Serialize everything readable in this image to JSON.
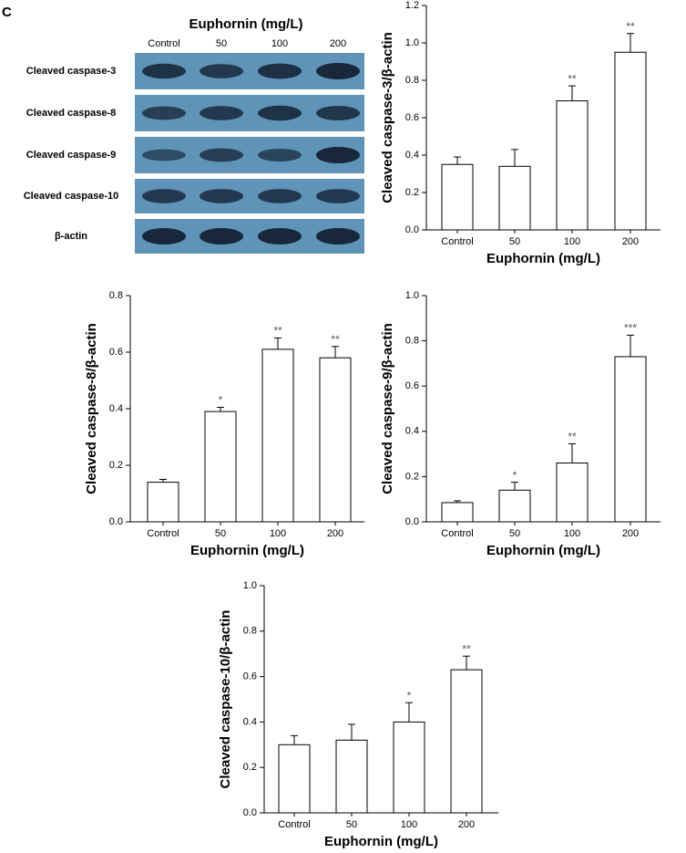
{
  "panel_label": "C",
  "blot": {
    "title": "Euphornin (mg/L)",
    "columns": [
      "Control",
      "50",
      "100",
      "200"
    ],
    "rows": [
      "Cleaved caspase-3",
      "Cleaved caspase-8",
      "Cleaved caspase-9",
      "Cleaved caspase-10",
      "β-actin"
    ]
  },
  "chart_data": [
    {
      "type": "bar",
      "ylabel": "Cleaved caspase-3/β-actin",
      "xlabel": "Euphornin (mg/L)",
      "categories": [
        "Control",
        "50",
        "100",
        "200"
      ],
      "values": [
        0.35,
        0.34,
        0.69,
        0.95
      ],
      "errors": [
        0.04,
        0.09,
        0.08,
        0.1
      ],
      "annotations": [
        null,
        null,
        "**",
        "**"
      ],
      "color": "#ffffff",
      "ylim": [
        0,
        1.2
      ],
      "yticks": [
        {
          "value": 0,
          "label": "0.0"
        },
        0.2,
        0.4,
        0.6,
        0.8,
        {
          "value": 1,
          "label": "1.0"
        },
        1.2
      ]
    },
    {
      "type": "bar",
      "ylabel": "Cleaved caspase-8/β-actin",
      "xlabel": "Euphornin (mg/L)",
      "categories": [
        "Control",
        "50",
        "100",
        "200"
      ],
      "values": [
        0.14,
        0.39,
        0.61,
        0.58
      ],
      "errors": [
        0.01,
        0.015,
        0.04,
        0.04
      ],
      "annotations": [
        null,
        "*",
        "**",
        "**"
      ],
      "color": "#ffffff",
      "ylim": [
        0,
        0.8
      ],
      "yticks": [
        {
          "value": 0,
          "label": "0.0"
        },
        0.2,
        0.4,
        0.6,
        0.8
      ]
    },
    {
      "type": "bar",
      "ylabel": "Cleaved caspase-9/β-actin",
      "xlabel": "Euphornin (mg/L)",
      "categories": [
        "Control",
        "50",
        "100",
        "200"
      ],
      "values": [
        0.085,
        0.14,
        0.26,
        0.73
      ],
      "errors": [
        0.008,
        0.035,
        0.085,
        0.095
      ],
      "annotations": [
        null,
        "*",
        "**",
        "***"
      ],
      "color": "#ffffff",
      "ylim": [
        0,
        1
      ],
      "yticks": [
        {
          "value": 0,
          "label": "0.0"
        },
        0.2,
        0.4,
        0.6,
        0.8,
        {
          "value": 1,
          "label": "1.0"
        }
      ]
    },
    {
      "type": "bar",
      "ylabel": "Cleaved caspase-10/β-actin",
      "xlabel": "Euphornin (mg/L)",
      "categories": [
        "Control",
        "50",
        "100",
        "200"
      ],
      "values": [
        0.3,
        0.32,
        0.4,
        0.63
      ],
      "errors": [
        0.04,
        0.07,
        0.085,
        0.06
      ],
      "annotations": [
        null,
        null,
        "*",
        "**"
      ],
      "color": "#ffffff",
      "ylim": [
        0,
        1
      ],
      "yticks": [
        {
          "value": 0,
          "label": "0.0"
        },
        0.2,
        0.4,
        0.6,
        0.8,
        {
          "value": 1,
          "label": "1.0"
        }
      ]
    }
  ]
}
